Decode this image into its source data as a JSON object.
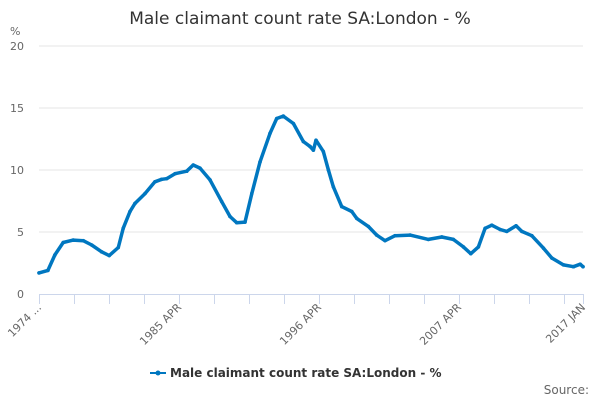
{
  "chart_data": {
    "type": "line",
    "title": "Male claimant count rate SA:London - %",
    "ylabel": "%",
    "xlabel": "",
    "ylim": [
      0,
      20
    ],
    "xlim": [
      1974.25,
      2017.0
    ],
    "yticks": [
      "0",
      "5",
      "10",
      "15",
      "20"
    ],
    "ytick_values": [
      0,
      5,
      10,
      15,
      20
    ],
    "xticks": [
      {
        "label": "1974 ...",
        "x": 1974.25
      },
      {
        "label": "1985 APR",
        "x": 1985.25
      },
      {
        "label": "1996 APR",
        "x": 1996.25
      },
      {
        "label": "2007 APR",
        "x": 2007.25
      },
      {
        "label": "2017 JAN",
        "x": 2017.0
      }
    ],
    "grid": true,
    "legend_position": "bottom",
    "color": "#0077c0",
    "series": [
      {
        "name": "Male claimant count rate SA:London - %",
        "x": [
          1974.25,
          1974.95,
          1975.5,
          1976.15,
          1976.94,
          1977.73,
          1978.39,
          1979.17,
          1979.77,
          1980.48,
          1980.87,
          1981.4,
          1981.79,
          1982.58,
          1983.36,
          1983.89,
          1984.28,
          1984.94,
          1985.86,
          1986.37,
          1986.9,
          1987.69,
          1988.61,
          1989.26,
          1989.79,
          1990.44,
          1990.97,
          1991.62,
          1992.4,
          1992.93,
          1993.45,
          1994.24,
          1995.02,
          1995.55,
          1995.81,
          1996.02,
          1996.59,
          1996.99,
          1997.38,
          1998.04,
          1998.83,
          1999.22,
          2000.13,
          2000.79,
          2001.44,
          2002.23,
          2003.41,
          2004.85,
          2005.9,
          2006.81,
          2007.6,
          2008.18,
          2008.78,
          2009.31,
          2009.83,
          2010.49,
          2011.01,
          2011.74,
          2012.19,
          2012.98,
          2013.89,
          2014.55,
          2015.46,
          2016.25,
          2016.78,
          2017.0
        ],
        "y": [
          1.7,
          1.9,
          3.15,
          4.15,
          4.35,
          4.3,
          3.95,
          3.4,
          3.1,
          3.75,
          5.3,
          6.65,
          7.3,
          8.1,
          9.05,
          9.25,
          9.3,
          9.7,
          9.9,
          10.4,
          10.15,
          9.2,
          7.45,
          6.25,
          5.75,
          5.8,
          8.1,
          10.65,
          12.95,
          14.15,
          14.35,
          13.75,
          12.3,
          11.9,
          11.6,
          12.4,
          11.5,
          10.0,
          8.65,
          7.05,
          6.65,
          6.1,
          5.45,
          4.75,
          4.3,
          4.7,
          4.75,
          4.4,
          4.6,
          4.4,
          3.8,
          3.25,
          3.8,
          5.3,
          5.55,
          5.2,
          5.05,
          5.5,
          5.05,
          4.7,
          3.7,
          2.9,
          2.35,
          2.2,
          2.4,
          2.2
        ]
      }
    ]
  },
  "source_label": "Source:"
}
